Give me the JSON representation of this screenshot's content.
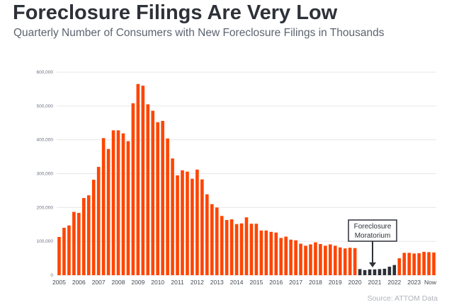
{
  "title": "Foreclosure Filings Are Very Low",
  "subtitle": "Quarterly Number of Consumers with New Foreclosure Filings in Thousands",
  "source": "Source: ATTOM Data",
  "chart_data": {
    "type": "bar",
    "title": "Foreclosure Filings Are Very Low",
    "subtitle": "Quarterly Number of Consumers with New Foreclosure Filings in Thousands",
    "xlabel": "",
    "ylabel": "",
    "ylim": [
      0,
      600000
    ],
    "y_ticks": [
      0,
      100000,
      200000,
      300000,
      400000,
      500000,
      600000
    ],
    "y_tick_labels": [
      "0",
      "100,000",
      "200,000",
      "300,000",
      "400,000",
      "500,000",
      "600,000"
    ],
    "x_tick_labels": [
      "2005",
      "2006",
      "2007",
      "2008",
      "2009",
      "2010",
      "2011",
      "2012",
      "2013",
      "2014",
      "2015",
      "2016",
      "2017",
      "2018",
      "2019",
      "2020",
      "2021",
      "2022",
      "2023",
      "Now"
    ],
    "grid": true,
    "colors": {
      "normal": "#ff4500",
      "moratorium": "#2b2f36",
      "grid": "#e6e6e6"
    },
    "categories": [
      "2005Q1",
      "2005Q2",
      "2005Q3",
      "2005Q4",
      "2006Q1",
      "2006Q2",
      "2006Q3",
      "2006Q4",
      "2007Q1",
      "2007Q2",
      "2007Q3",
      "2007Q4",
      "2008Q1",
      "2008Q2",
      "2008Q3",
      "2008Q4",
      "2009Q1",
      "2009Q2",
      "2009Q3",
      "2009Q4",
      "2010Q1",
      "2010Q2",
      "2010Q3",
      "2010Q4",
      "2011Q1",
      "2011Q2",
      "2011Q3",
      "2011Q4",
      "2012Q1",
      "2012Q2",
      "2012Q3",
      "2012Q4",
      "2013Q1",
      "2013Q2",
      "2013Q3",
      "2013Q4",
      "2014Q1",
      "2014Q2",
      "2014Q3",
      "2014Q4",
      "2015Q1",
      "2015Q2",
      "2015Q3",
      "2015Q4",
      "2016Q1",
      "2016Q2",
      "2016Q3",
      "2016Q4",
      "2017Q1",
      "2017Q2",
      "2017Q3",
      "2017Q4",
      "2018Q1",
      "2018Q2",
      "2018Q3",
      "2018Q4",
      "2019Q1",
      "2019Q2",
      "2019Q3",
      "2019Q4",
      "2020Q1",
      "2020Q2",
      "2020Q3",
      "2020Q4",
      "2021Q1",
      "2021Q2",
      "2021Q3",
      "2021Q4",
      "2022Q1",
      "2022Q2",
      "2022Q3",
      "2022Q4",
      "2023Q1",
      "2023Q2",
      "2023Q3",
      "2023Q4",
      "Now"
    ],
    "values": [
      113000,
      140000,
      147000,
      187000,
      184000,
      228000,
      236000,
      282000,
      320000,
      405000,
      373000,
      428000,
      428000,
      419000,
      396000,
      508000,
      565000,
      560000,
      505000,
      486000,
      452000,
      456000,
      404000,
      345000,
      295000,
      310000,
      306000,
      285000,
      312000,
      283000,
      239000,
      210000,
      200000,
      175000,
      163000,
      165000,
      151000,
      153000,
      171000,
      152000,
      152000,
      132000,
      132000,
      128000,
      126000,
      110000,
      114000,
      105000,
      103000,
      93000,
      87000,
      91000,
      97000,
      92000,
      87000,
      91000,
      87000,
      82000,
      79000,
      81000,
      80000,
      18000,
      15000,
      17000,
      17000,
      18000,
      19000,
      25000,
      30000,
      50000,
      66000,
      66000,
      64000,
      65000,
      69000,
      68000,
      67000
    ],
    "highlight_range": [
      "2020Q2",
      "2022Q1"
    ],
    "annotation": {
      "text_lines": [
        "Foreclosure",
        "Moratorium"
      ],
      "points_to": "2021Q1"
    }
  }
}
